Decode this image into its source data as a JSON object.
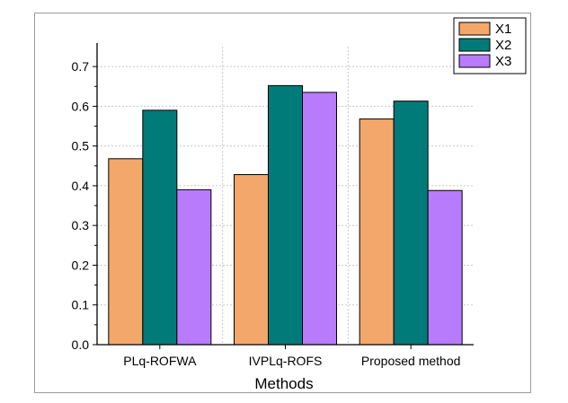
{
  "chart_data": {
    "type": "bar",
    "title": "",
    "xlabel": "Methods",
    "ylabel": "",
    "categories": [
      "PLq-ROFWA",
      "IVPLq-ROFS",
      "Proposed method"
    ],
    "series": [
      {
        "name": "X1",
        "color": "#f4a76a",
        "values": [
          0.468,
          0.428,
          0.568
        ]
      },
      {
        "name": "X2",
        "color": "#007b79",
        "values": [
          0.59,
          0.652,
          0.613
        ]
      },
      {
        "name": "X3",
        "color": "#b87bfc",
        "values": [
          0.39,
          0.635,
          0.388
        ]
      }
    ],
    "ylim": [
      0,
      0.75
    ],
    "yticks": [
      "0.0",
      "0.1",
      "0.2",
      "0.3",
      "0.4",
      "0.5",
      "0.6",
      "0.7"
    ],
    "grid": true,
    "legend_position": "top-right"
  }
}
